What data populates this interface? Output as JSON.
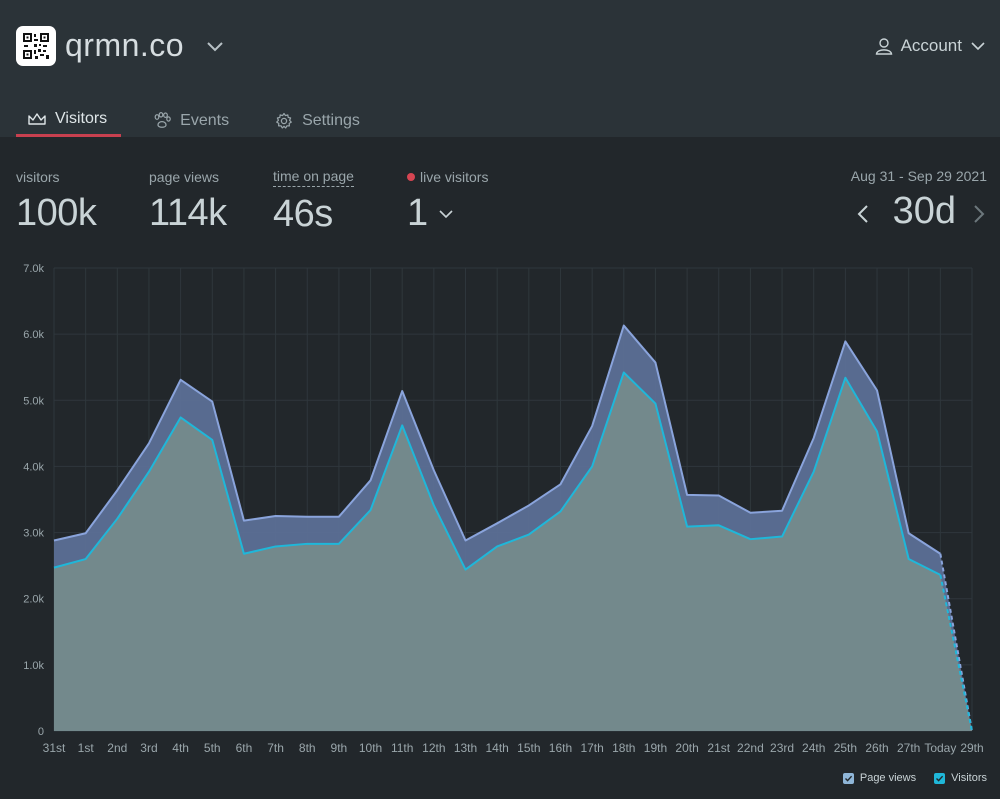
{
  "header": {
    "site_name": "qrmn.co",
    "account_label": "Account"
  },
  "tabs": [
    {
      "label": "Visitors",
      "icon": "crown-icon",
      "active": true
    },
    {
      "label": "Events",
      "icon": "paw-icon",
      "active": false
    },
    {
      "label": "Settings",
      "icon": "gear-icon",
      "active": false
    }
  ],
  "stats": {
    "visitors": {
      "label": "visitors",
      "value": "100k"
    },
    "page_views": {
      "label": "page views",
      "value": "114k"
    },
    "time_on_page": {
      "label": "time on page",
      "value": "46s"
    },
    "live_visitors": {
      "label": "live visitors",
      "value": "1"
    }
  },
  "range": {
    "label": "Aug 31 - Sep 29 2021",
    "value": "30d"
  },
  "colors": {
    "accent": "#c8404f",
    "page_views": "#6f86c4",
    "visitors": "#1fb7d9",
    "area_fill": "#7a9092"
  },
  "chart_data": {
    "type": "area",
    "categories": [
      "31st",
      "1st",
      "2nd",
      "3rd",
      "4th",
      "5th",
      "6th",
      "7th",
      "8th",
      "9th",
      "10th",
      "11th",
      "12th",
      "13th",
      "14th",
      "15th",
      "16th",
      "17th",
      "18th",
      "19th",
      "20th",
      "21st",
      "22nd",
      "23rd",
      "24th",
      "25th",
      "26th",
      "27th",
      "Today",
      "29th"
    ],
    "series": [
      {
        "name": "Page views",
        "values": [
          2880,
          2990,
          3640,
          4350,
          5310,
          4980,
          3180,
          3250,
          3240,
          3240,
          3790,
          5140,
          3940,
          2880,
          3140,
          3410,
          3730,
          4610,
          6130,
          5570,
          3570,
          3560,
          3300,
          3330,
          4430,
          5890,
          5150,
          2990,
          2680,
          0
        ]
      },
      {
        "name": "Visitors",
        "values": [
          2470,
          2600,
          3210,
          3920,
          4740,
          4400,
          2680,
          2790,
          2830,
          2830,
          3340,
          4620,
          3410,
          2440,
          2790,
          2970,
          3320,
          4000,
          5420,
          4950,
          3090,
          3110,
          2900,
          2940,
          3920,
          5340,
          4530,
          2600,
          2360,
          0
        ]
      }
    ],
    "ylim": [
      0,
      7000
    ],
    "y_ticks": [
      "0",
      "1.0k",
      "2.0k",
      "3.0k",
      "4.0k",
      "5.0k",
      "6.0k",
      "7.0k"
    ],
    "grid": true,
    "legend": "bottom-right"
  }
}
